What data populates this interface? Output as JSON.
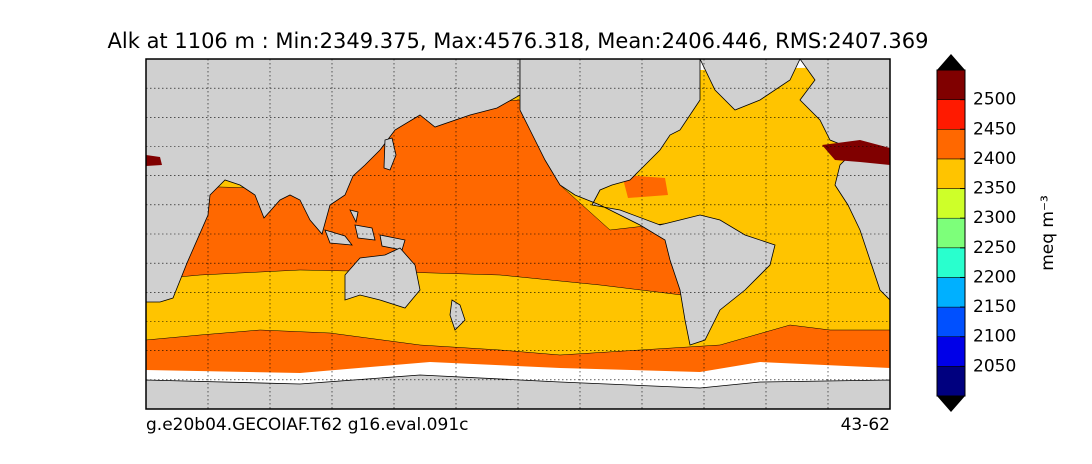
{
  "title": "Alk at 1106 m : Min:2349.375, Max:4576.318, Mean:2406.446, RMS:2407.369",
  "footer_left": "g.e20b04.GECOIAF.T62 g16.eval.091c",
  "footer_right": "43-62",
  "colorbar": {
    "label": "meq m⁻³",
    "levels": [
      2000,
      2050,
      2100,
      2150,
      2200,
      2250,
      2300,
      2350,
      2400,
      2450,
      2500,
      2550
    ],
    "colors": [
      "#00007f",
      "#0000e8",
      "#0050ff",
      "#00b0ff",
      "#29ffce",
      "#7dff7a",
      "#ceff29",
      "#ffc400",
      "#ff6800",
      "#ff1a00",
      "#800000"
    ],
    "ticks": [
      2050,
      2100,
      2150,
      2200,
      2250,
      2300,
      2350,
      2400,
      2450,
      2500
    ],
    "extend": "both"
  }
}
